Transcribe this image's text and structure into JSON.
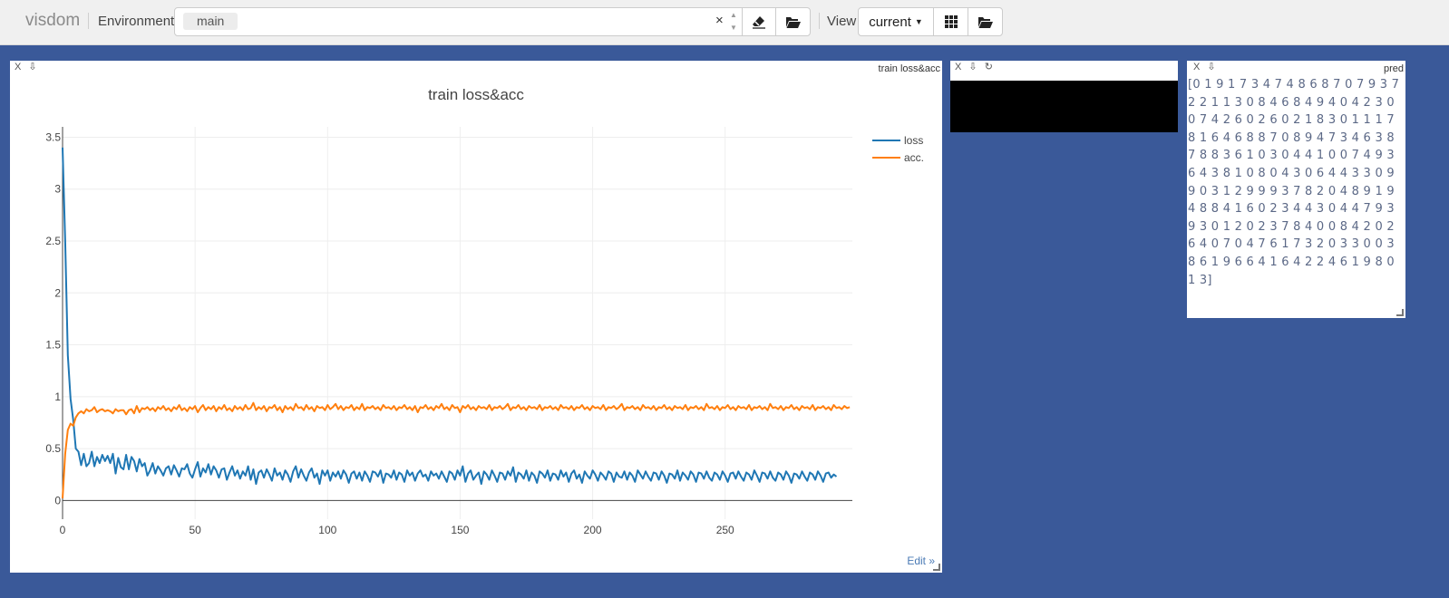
{
  "header": {
    "brand": "visdom",
    "environment_label": "Environment",
    "env_tag": "main",
    "clear_symbol": "×",
    "view_label": "View",
    "view_select": "current"
  },
  "panes": {
    "chart": {
      "title": "train loss&acc",
      "window_title": "train loss&acc",
      "close_symbol": "X",
      "download_symbol": "⇩",
      "edit_link": "Edit »"
    },
    "image": {
      "close_symbol": "X",
      "download_symbol": "⇩",
      "reload_symbol": "↻"
    },
    "text": {
      "window_title": "pred",
      "close_symbol": "X",
      "download_symbol": "⇩",
      "content": "[0 1 9 1 7 3 4 7 4 8 6 8 7 0 7 9 3 7 2 2 1 1 3 0 8 4 6 8 4 9 4 0 4 2 3 0 0 7 4 2 6 0 2 6 0 2 1 8 3 0 1 1 1 7 8 1 6 4 6 8 8 7 0 8 9 4 7 3 4 6 3 8 7 8 8 3 6 1 0 3 0 4 4 1 0 0 7 4 9 3 6 4 3 8 1 0 8 0 4 3 0 6 4 4 3 3 0 9 9 0 3 1 2 9 9 9 3 7 8 2 0 4 8 9 1 9 4 8 8 4 1 6 0 2 3 4 4 3 0 4 4 7 9 3 9 3 0 1 2 0 2 3 7 8 4 0 0 8 4 2 0 2 6 4 0 7 0 4 7 6 1 7 3 2 0 3 3 0 0 3 8 6 1 9 6 6 4 1 6 4 2 2 4 6 1 9 8 0 1 3]"
    }
  },
  "chart_data": {
    "type": "line",
    "title": "train loss&acc",
    "xlabel": "",
    "ylabel": "",
    "xlim": [
      0,
      298
    ],
    "ylim": [
      -0.18,
      3.6
    ],
    "x_ticks": [
      0,
      50,
      100,
      150,
      200,
      250
    ],
    "x_tick_labels": [
      "0",
      "50",
      "100",
      "150",
      "200",
      "250"
    ],
    "y_ticks": [
      0,
      0.5,
      1,
      1.5,
      2,
      2.5,
      3,
      3.5
    ],
    "y_tick_labels": [
      "0",
      "0.5",
      "1",
      "1.5",
      "2",
      "2.5",
      "3",
      "3.5"
    ],
    "grid": true,
    "legend_position": "top-right",
    "n_points": 299,
    "series": [
      {
        "name": "loss",
        "color": "#1f77b4",
        "values": [
          3.4,
          2.5,
          1.4,
          0.98,
          0.78,
          0.5,
          0.47,
          0.34,
          0.45,
          0.33,
          0.36,
          0.47,
          0.33,
          0.42,
          0.36,
          0.44,
          0.38,
          0.43,
          0.36,
          0.45,
          0.26,
          0.41,
          0.32,
          0.3,
          0.44,
          0.3,
          0.42,
          0.38,
          0.28,
          0.4,
          0.33,
          0.36,
          0.24,
          0.29,
          0.36,
          0.26,
          0.33,
          0.29,
          0.24,
          0.31,
          0.33,
          0.25,
          0.34,
          0.29,
          0.23,
          0.31,
          0.3,
          0.35,
          0.26,
          0.22,
          0.3,
          0.37,
          0.23,
          0.31,
          0.27,
          0.35,
          0.25,
          0.33,
          0.29,
          0.22,
          0.3,
          0.31,
          0.2,
          0.27,
          0.33,
          0.24,
          0.29,
          0.21,
          0.28,
          0.24,
          0.33,
          0.2,
          0.3,
          0.16,
          0.27,
          0.29,
          0.22,
          0.3,
          0.25,
          0.19,
          0.31,
          0.24,
          0.27,
          0.2,
          0.29,
          0.25,
          0.18,
          0.28,
          0.33,
          0.22,
          0.3,
          0.24,
          0.19,
          0.27,
          0.31,
          0.22,
          0.26,
          0.16,
          0.29,
          0.24,
          0.29,
          0.19,
          0.27,
          0.23,
          0.28,
          0.21,
          0.29,
          0.25,
          0.17,
          0.26,
          0.28,
          0.21,
          0.27,
          0.19,
          0.28,
          0.24,
          0.18,
          0.28,
          0.27,
          0.23,
          0.29,
          0.17,
          0.26,
          0.25,
          0.22,
          0.29,
          0.2,
          0.27,
          0.25,
          0.18,
          0.29,
          0.24,
          0.27,
          0.19,
          0.26,
          0.29,
          0.23,
          0.25,
          0.19,
          0.28,
          0.24,
          0.26,
          0.21,
          0.28,
          0.23,
          0.18,
          0.28,
          0.26,
          0.2,
          0.29,
          0.24,
          0.33,
          0.18,
          0.26,
          0.29,
          0.2,
          0.24,
          0.27,
          0.16,
          0.28,
          0.25,
          0.2,
          0.29,
          0.24,
          0.18,
          0.27,
          0.26,
          0.2,
          0.28,
          0.24,
          0.32,
          0.18,
          0.27,
          0.25,
          0.21,
          0.29,
          0.19,
          0.27,
          0.24,
          0.17,
          0.28,
          0.26,
          0.22,
          0.29,
          0.19,
          0.26,
          0.25,
          0.2,
          0.29,
          0.23,
          0.27,
          0.18,
          0.26,
          0.29,
          0.21,
          0.25,
          0.17,
          0.28,
          0.24,
          0.21,
          0.29,
          0.25,
          0.19,
          0.27,
          0.24,
          0.2,
          0.28,
          0.26,
          0.18,
          0.27,
          0.23,
          0.22,
          0.28,
          0.2,
          0.27,
          0.24,
          0.18,
          0.29,
          0.25,
          0.21,
          0.28,
          0.23,
          0.19,
          0.27,
          0.26,
          0.2,
          0.28,
          0.24,
          0.17,
          0.26,
          0.25,
          0.21,
          0.29,
          0.19,
          0.27,
          0.24,
          0.2,
          0.28,
          0.25,
          0.18,
          0.27,
          0.26,
          0.21,
          0.28,
          0.22,
          0.19,
          0.27,
          0.25,
          0.2,
          0.28,
          0.24,
          0.18,
          0.26,
          0.27,
          0.21,
          0.28,
          0.23,
          0.19,
          0.27,
          0.25,
          0.2,
          0.29,
          0.24,
          0.18,
          0.27,
          0.26,
          0.21,
          0.28,
          0.22,
          0.19,
          0.27,
          0.25,
          0.2,
          0.28,
          0.24,
          0.17,
          0.26,
          0.25,
          0.21,
          0.28,
          0.23,
          0.19,
          0.27,
          0.25,
          0.2,
          0.28,
          0.24,
          0.18,
          0.26,
          0.27,
          0.22,
          0.25,
          0.23
        ]
      },
      {
        "name": "acc.",
        "color": "#ff7f0e",
        "values": [
          0.02,
          0.45,
          0.68,
          0.74,
          0.72,
          0.8,
          0.84,
          0.86,
          0.84,
          0.88,
          0.86,
          0.87,
          0.9,
          0.85,
          0.87,
          0.88,
          0.86,
          0.87,
          0.86,
          0.84,
          0.88,
          0.86,
          0.87,
          0.87,
          0.83,
          0.87,
          0.88,
          0.84,
          0.91,
          0.85,
          0.89,
          0.88,
          0.9,
          0.87,
          0.89,
          0.86,
          0.9,
          0.88,
          0.91,
          0.87,
          0.89,
          0.86,
          0.9,
          0.88,
          0.92,
          0.87,
          0.89,
          0.86,
          0.9,
          0.88,
          0.91,
          0.85,
          0.89,
          0.92,
          0.87,
          0.9,
          0.88,
          0.91,
          0.86,
          0.9,
          0.88,
          0.92,
          0.87,
          0.89,
          0.86,
          0.91,
          0.88,
          0.9,
          0.87,
          0.92,
          0.88,
          0.89,
          0.94,
          0.87,
          0.9,
          0.88,
          0.91,
          0.86,
          0.9,
          0.89,
          0.92,
          0.87,
          0.9,
          0.85,
          0.91,
          0.88,
          0.9,
          0.87,
          0.93,
          0.89,
          0.9,
          0.87,
          0.92,
          0.88,
          0.9,
          0.86,
          0.91,
          0.89,
          0.9,
          0.87,
          0.92,
          0.88,
          0.9,
          0.93,
          0.88,
          0.91,
          0.87,
          0.9,
          0.89,
          0.92,
          0.87,
          0.9,
          0.88,
          0.93,
          0.87,
          0.9,
          0.89,
          0.91,
          0.88,
          0.9,
          0.87,
          0.92,
          0.89,
          0.9,
          0.88,
          0.91,
          0.87,
          0.9,
          0.89,
          0.92,
          0.88,
          0.9,
          0.87,
          0.91,
          0.85,
          0.9,
          0.89,
          0.92,
          0.88,
          0.9,
          0.87,
          0.91,
          0.89,
          0.93,
          0.88,
          0.9,
          0.87,
          0.92,
          0.89,
          0.9,
          0.85,
          0.91,
          0.89,
          0.92,
          0.88,
          0.9,
          0.87,
          0.91,
          0.89,
          0.9,
          0.88,
          0.92,
          0.87,
          0.9,
          0.89,
          0.91,
          0.88,
          0.9,
          0.93,
          0.87,
          0.9,
          0.89,
          0.92,
          0.88,
          0.9,
          0.87,
          0.91,
          0.89,
          0.9,
          0.88,
          0.92,
          0.87,
          0.9,
          0.89,
          0.91,
          0.88,
          0.9,
          0.87,
          0.92,
          0.89,
          0.9,
          0.88,
          0.91,
          0.87,
          0.9,
          0.89,
          0.92,
          0.88,
          0.9,
          0.87,
          0.91,
          0.89,
          0.9,
          0.88,
          0.92,
          0.87,
          0.9,
          0.89,
          0.91,
          0.88,
          0.9,
          0.93,
          0.87,
          0.9,
          0.89,
          0.91,
          0.88,
          0.9,
          0.87,
          0.92,
          0.89,
          0.9,
          0.88,
          0.91,
          0.87,
          0.9,
          0.89,
          0.92,
          0.88,
          0.9,
          0.87,
          0.91,
          0.89,
          0.9,
          0.88,
          0.92,
          0.87,
          0.9,
          0.89,
          0.91,
          0.88,
          0.9,
          0.87,
          0.93,
          0.89,
          0.9,
          0.88,
          0.91,
          0.87,
          0.9,
          0.89,
          0.92,
          0.88,
          0.9,
          0.87,
          0.91,
          0.89,
          0.9,
          0.88,
          0.92,
          0.87,
          0.9,
          0.89,
          0.91,
          0.88,
          0.9,
          0.87,
          0.93,
          0.89,
          0.9,
          0.88,
          0.91,
          0.87,
          0.9,
          0.89,
          0.92,
          0.88,
          0.9,
          0.87,
          0.91,
          0.89,
          0.9,
          0.88,
          0.92,
          0.87,
          0.9,
          0.89,
          0.91,
          0.88,
          0.9,
          0.87,
          0.92,
          0.89,
          0.9,
          0.88,
          0.91,
          0.89,
          0.9
        ]
      }
    ]
  }
}
